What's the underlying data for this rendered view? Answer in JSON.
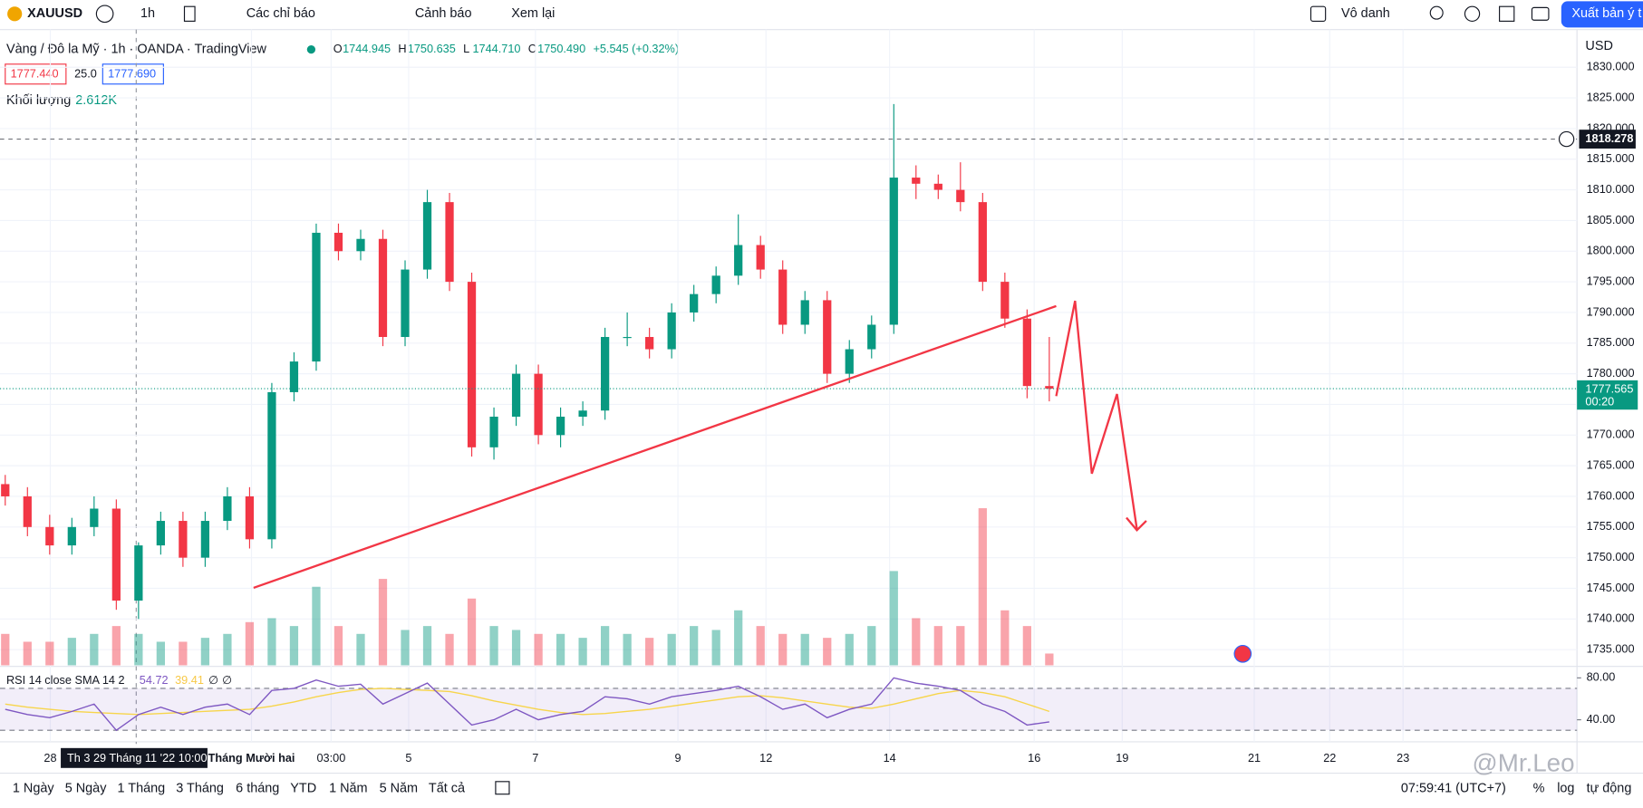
{
  "toolbar": {
    "symbol": "XAUUSD",
    "interval": "1h",
    "indicators": "Các chỉ báo",
    "alert": "Cảnh báo",
    "replay": "Xem lại",
    "layout": "Vô danh",
    "publish": "Xuất bản ý t"
  },
  "legend": {
    "title": "Vàng / Đô la Mỹ · 1h · OANDA · TradingView",
    "ohlc": [
      {
        "label": "O",
        "value": "1744.945"
      },
      {
        "label": "H",
        "value": "1750.635"
      },
      {
        "label": "L",
        "value": "1744.710"
      },
      {
        "label": "C",
        "value": "1750.490"
      }
    ],
    "change": "+5.545 (+0.32%)",
    "bid": "1777.440",
    "spread": "25.0",
    "ask": "1777.690",
    "volume_label": "Khối lượng",
    "volume_value": "2.612K"
  },
  "currency": "USD",
  "chart_data": {
    "type": "candlestick",
    "open": [
      1762,
      1760,
      1755,
      1752,
      1755,
      1758,
      1743,
      1752,
      1756,
      1750,
      1756,
      1760,
      1753,
      1777,
      1782,
      1803,
      1800,
      1802,
      1786,
      1797,
      1808,
      1795,
      1768,
      1773,
      1780,
      1770,
      1773,
      1774,
      1786,
      1786,
      1784,
      1790,
      1793,
      1796,
      1801,
      1797,
      1788,
      1792,
      1780,
      1784,
      1788,
      1812,
      1811,
      1810,
      1808,
      1795,
      1789,
      1778
    ],
    "high": [
      1763.5,
      1761.5,
      1757,
      1756.5,
      1760,
      1759.5,
      1752.5,
      1757.5,
      1757.5,
      1757.5,
      1761.5,
      1761.5,
      1778.5,
      1783.5,
      1804.5,
      1804.5,
      1803.5,
      1803.5,
      1798.5,
      1810,
      1809.5,
      1796.5,
      1774.5,
      1781.5,
      1781.5,
      1774.5,
      1775.5,
      1787.5,
      1790,
      1787.5,
      1791.5,
      1794.5,
      1797.5,
      1806,
      1802.5,
      1798.5,
      1793.5,
      1793.5,
      1785.5,
      1789.5,
      1824,
      1814,
      1812.5,
      1814.5,
      1809.5,
      1796.5,
      1790.5,
      1786
    ],
    "low": [
      1758.5,
      1753.5,
      1750.5,
      1750.5,
      1753.5,
      1741.5,
      1740,
      1750.5,
      1748.5,
      1748.5,
      1754.5,
      1751.5,
      1751.5,
      1775.5,
      1780.5,
      1798.5,
      1798.5,
      1784.5,
      1784.5,
      1795.5,
      1793.5,
      1766.5,
      1766,
      1771.5,
      1768.5,
      1768,
      1771.5,
      1772.5,
      1784.5,
      1782.5,
      1782.5,
      1788.5,
      1791.5,
      1794.5,
      1795.5,
      1786.5,
      1786.5,
      1778.5,
      1778.5,
      1782.5,
      1786.5,
      1808.5,
      1808.5,
      1806.5,
      1793.5,
      1787.5,
      1776,
      1775.5
    ],
    "close": [
      1760,
      1755,
      1752,
      1755,
      1758,
      1743,
      1752,
      1756,
      1750,
      1756,
      1760,
      1753,
      1777,
      1782,
      1803,
      1800,
      1802,
      1786,
      1797,
      1808,
      1795,
      1768,
      1773,
      1780,
      1770,
      1773,
      1774,
      1786,
      1786,
      1784,
      1790,
      1793,
      1796,
      1801,
      1797,
      1788,
      1792,
      1780,
      1784,
      1788,
      1812,
      1811,
      1810,
      1808,
      1795,
      1789,
      1778,
      1777.565
    ],
    "volume": [
      4,
      3,
      3,
      3.5,
      4,
      5,
      4,
      3,
      3,
      3.5,
      4,
      5.5,
      6,
      5,
      10,
      5,
      4,
      11,
      4.5,
      5,
      4,
      8.5,
      5,
      4.5,
      4,
      4,
      3.5,
      5,
      4,
      3.5,
      4,
      5,
      4.5,
      7,
      5,
      4,
      4,
      3.5,
      4,
      5,
      12,
      6,
      5,
      5,
      20,
      7,
      5,
      1.5
    ],
    "ylim": [
      1732.44,
      1834.61
    ],
    "yticks": [
      {
        "value": 1735,
        "label": "1735.000"
      },
      {
        "value": 1740,
        "label": "1740.000"
      },
      {
        "value": 1745,
        "label": "1745.000"
      },
      {
        "value": 1750,
        "label": "1750.000"
      },
      {
        "value": 1755,
        "label": "1755.000"
      },
      {
        "value": 1760,
        "label": "1760.000"
      },
      {
        "value": 1765,
        "label": "1765.000"
      },
      {
        "value": 1770,
        "label": "1770.000"
      },
      {
        "value": 1775,
        "label": "1775.000"
      },
      {
        "value": 1780,
        "label": "1780.000"
      },
      {
        "value": 1785,
        "label": "1785.000"
      },
      {
        "value": 1790,
        "label": "1790.000"
      },
      {
        "value": 1795,
        "label": "1795.000"
      },
      {
        "value": 1800,
        "label": "1800.000"
      },
      {
        "value": 1805,
        "label": "1805.000"
      },
      {
        "value": 1810,
        "label": "1810.000"
      },
      {
        "value": 1815,
        "label": "1815.000"
      },
      {
        "value": 1820,
        "label": "1820.000"
      },
      {
        "value": 1825,
        "label": "1825.000"
      },
      {
        "value": 1830,
        "label": "1830.000"
      }
    ],
    "up_color": "#089981",
    "down_color": "#f23645",
    "price_line": 1818.278,
    "last_price": 1777.565,
    "countdown": "00:20"
  },
  "rsi": {
    "title": "RSI 14 close SMA 14 2",
    "legend_values": [
      "54.72",
      "39.41",
      "∅",
      "∅"
    ],
    "values": [
      50,
      45,
      42,
      48,
      55,
      30,
      45,
      52,
      45,
      52,
      55,
      45,
      68,
      70,
      78,
      72,
      74,
      55,
      65,
      75,
      55,
      35,
      40,
      50,
      40,
      45,
      48,
      62,
      60,
      55,
      62,
      65,
      68,
      72,
      62,
      50,
      55,
      42,
      50,
      55,
      80,
      75,
      72,
      68,
      55,
      48,
      35,
      38
    ],
    "sma": [
      55,
      52,
      50,
      48,
      47,
      46,
      45,
      46,
      47,
      48,
      49,
      50,
      53,
      57,
      62,
      66,
      69,
      70,
      69,
      68,
      67,
      63,
      58,
      54,
      50,
      47,
      45,
      46,
      48,
      50,
      53,
      56,
      59,
      62,
      63,
      61,
      58,
      55,
      52,
      51,
      55,
      60,
      65,
      68,
      66,
      62,
      55,
      48
    ],
    "ylim": [
      20,
      87
    ],
    "yticks": [
      {
        "value": 80,
        "label": "80.00"
      },
      {
        "value": 40,
        "label": "40.00"
      }
    ],
    "bands": [
      70,
      30
    ],
    "color": "#7e57c2",
    "sma_color": "#f7d54b"
  },
  "time_axis": [
    "28",
    "Tháng Mười hai",
    "03:00",
    "5",
    "7",
    "9",
    "12",
    "14",
    "16",
    "19",
    "21",
    "22",
    "23"
  ],
  "crosshair_label": "Th 3 29 Tháng 11 '22   10:00",
  "bottom_bar": {
    "ranges": [
      "1 Ngày",
      "5 Ngày",
      "1 Tháng",
      "3 Tháng",
      "6 tháng",
      "YTD",
      "1 Năm",
      "5 Năm",
      "Tất cả"
    ],
    "clock": "07:59:41 (UTC+7)",
    "percent": "%",
    "log": "log",
    "auto": "tự động"
  },
  "watermark": "@Mr.Leo"
}
